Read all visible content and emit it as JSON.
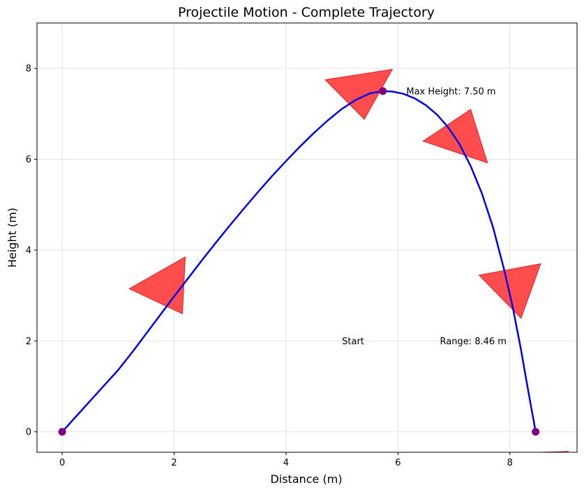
{
  "chart_data": {
    "type": "line",
    "title": "Projectile Motion - Complete Trajectory",
    "xlabel": "Distance (m)",
    "ylabel": "Height (m)",
    "xlim": [
      -0.45,
      9.2
    ],
    "ylim": [
      -0.45,
      9.0
    ],
    "xticks": [
      0,
      2,
      4,
      6,
      8
    ],
    "yticks": [
      0,
      2,
      4,
      6,
      8
    ],
    "xtick_labels": [
      "0",
      "2",
      "4",
      "6",
      "8"
    ],
    "ytick_labels": [
      "0",
      "2",
      "4",
      "6",
      "8"
    ],
    "grid": true,
    "trajectory": {
      "color": "#0000ee",
      "x": [
        0,
        0.25,
        0.5,
        0.75,
        1.0,
        1.25,
        1.5,
        1.75,
        2.0,
        2.25,
        2.5,
        2.75,
        3.0,
        3.25,
        3.5,
        3.75,
        4.0,
        4.25,
        4.5,
        4.75,
        5.0,
        5.25,
        5.5,
        5.73,
        5.9,
        6.1,
        6.3,
        6.5,
        6.7,
        6.9,
        7.1,
        7.3,
        7.5,
        7.7,
        7.9,
        8.05,
        8.2,
        8.3,
        8.38,
        8.43,
        8.46
      ],
      "y": [
        0,
        0.34,
        0.68,
        1.02,
        1.36,
        1.75,
        2.16,
        2.57,
        2.98,
        3.38,
        3.78,
        4.17,
        4.55,
        4.92,
        5.28,
        5.63,
        5.96,
        6.28,
        6.58,
        6.86,
        7.11,
        7.31,
        7.45,
        7.5,
        7.49,
        7.44,
        7.34,
        7.19,
        6.98,
        6.7,
        6.33,
        5.85,
        5.25,
        4.5,
        3.56,
        2.75,
        1.8,
        1.1,
        0.55,
        0.22,
        0.0
      ]
    },
    "key_points": {
      "color": "#800080",
      "points": [
        {
          "x": 0,
          "y": 0
        },
        {
          "x": 5.73,
          "y": 7.5
        },
        {
          "x": 8.46,
          "y": 0
        }
      ]
    },
    "arrows": {
      "color": "#ff3333",
      "items": [
        {
          "tip_x": 2.2,
          "tip_y": 3.85,
          "base_x": 1.2,
          "base_y": 3.15,
          "width_x": 2.15,
          "width_y": 2.6
        },
        {
          "tip_x": 5.9,
          "tip_y": 7.98,
          "base_x": 4.7,
          "base_y": 7.75,
          "width_x": 5.4,
          "width_y": 6.88
        },
        {
          "tip_x": 7.6,
          "tip_y": 5.92,
          "base_x": 6.45,
          "base_y": 6.4,
          "width_x": 7.3,
          "width_y": 7.1
        },
        {
          "tip_x": 8.55,
          "tip_y": 3.7,
          "base_x": 7.45,
          "base_y": 3.45,
          "width_x": 8.2,
          "width_y": 2.5
        },
        {
          "tip_x": 9.05,
          "tip_y": -0.43,
          "base_x": 8.55,
          "base_y": -0.45,
          "width_x": 8.6,
          "width_y": -0.45
        }
      ]
    },
    "annotations": [
      {
        "text": "Max Height: 7.50 m",
        "x": 6.15,
        "y": 7.5
      },
      {
        "text": "Start",
        "x": 5.0,
        "y": 2.0
      },
      {
        "text": "Range: 8.46 m",
        "x": 6.75,
        "y": 2.0
      }
    ]
  }
}
